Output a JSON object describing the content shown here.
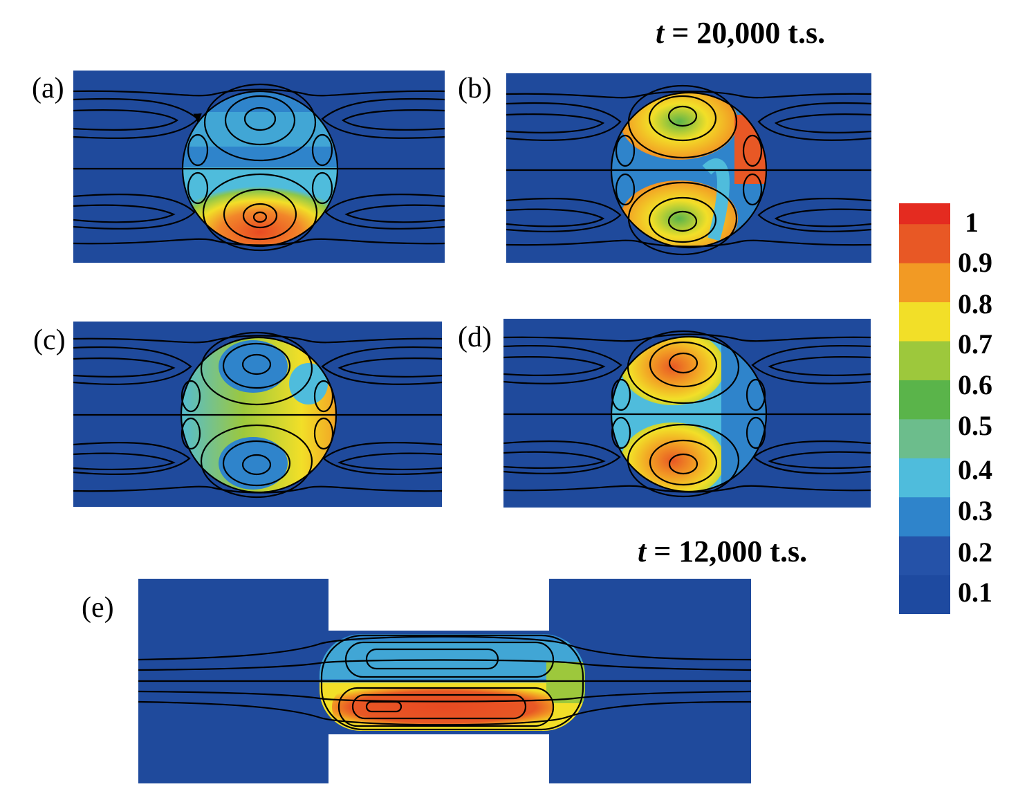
{
  "figure": {
    "time_top": {
      "var": "t",
      "text": " = 20,000 t.s."
    },
    "time_bottom": {
      "var": "t",
      "text": " = 12,000 t.s."
    }
  },
  "panels": [
    {
      "label": "(a)"
    },
    {
      "label": "(b)"
    },
    {
      "label": "(c)"
    },
    {
      "label": "(d)"
    },
    {
      "label": "(e)"
    }
  ],
  "colorbar": {
    "min": 0,
    "max": 1,
    "colors": [
      "#1e4aa0",
      "#2552a8",
      "#2f84cb",
      "#4fbcdc",
      "#6cbd8c",
      "#5ab44a",
      "#9dc83c",
      "#f2df28",
      "#f29a24",
      "#e85825",
      "#e42b20"
    ],
    "ticks": [
      "1",
      "0.9",
      "0.8",
      "0.7",
      "0.6",
      "0.5",
      "0.4",
      "0.3",
      "0.2",
      "0.1"
    ]
  },
  "colors": {
    "background_field": "#1f4a9c",
    "streamline": "#000000"
  }
}
